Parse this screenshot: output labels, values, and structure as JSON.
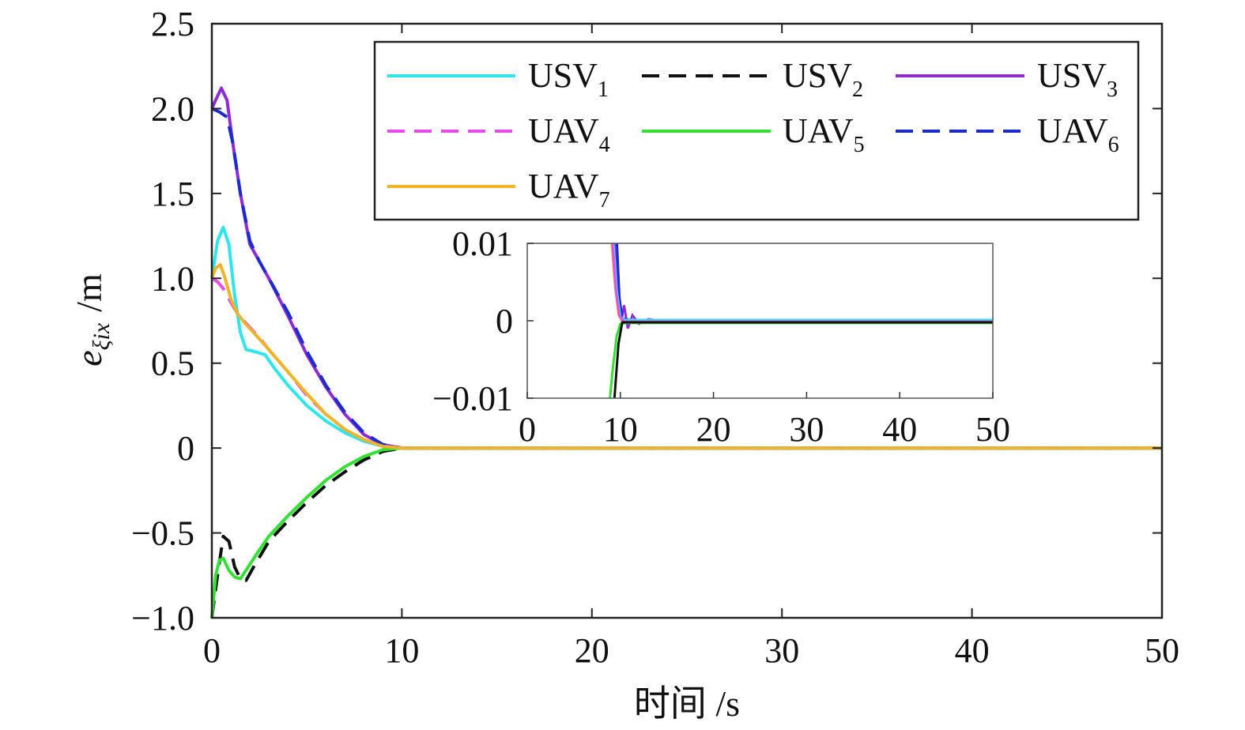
{
  "chart_data": [
    {
      "type": "line",
      "xlabel": "时间 /s",
      "ylabel": "e",
      "ylabel_sub": "ξix",
      "ylabel_unit": "/m",
      "xlim": [
        0,
        50
      ],
      "ylim": [
        -1.0,
        2.5
      ],
      "x_ticks": [
        "0",
        "10",
        "20",
        "30",
        "40",
        "50"
      ],
      "y_ticks": [
        "−1.0",
        "−0.5",
        "0",
        "0.5",
        "1.0",
        "1.5",
        "2.0",
        "2.5"
      ],
      "grid": false,
      "legend_placement": "top-right",
      "series": [
        {
          "name": "USV",
          "sub": "1",
          "color": "#2ee6ee",
          "dash": "solid",
          "x": [
            0,
            0.3,
            0.6,
            0.9,
            1.2,
            1.5,
            1.8,
            2.2,
            2.8,
            3.3,
            4,
            5,
            6,
            7,
            8,
            9,
            10,
            50
          ],
          "y": [
            1.0,
            1.22,
            1.3,
            1.2,
            0.9,
            0.68,
            0.58,
            0.57,
            0.55,
            0.47,
            0.37,
            0.25,
            0.16,
            0.09,
            0.04,
            0.01,
            0,
            0
          ]
        },
        {
          "name": "USV",
          "sub": "2",
          "color": "#111111",
          "dash": "dashed",
          "x": [
            0,
            0.3,
            0.6,
            0.9,
            1.2,
            1.5,
            1.8,
            2.2,
            3,
            4,
            5,
            6,
            7,
            8,
            9,
            10,
            50
          ],
          "y": [
            -1.0,
            -0.75,
            -0.52,
            -0.55,
            -0.7,
            -0.77,
            -0.78,
            -0.7,
            -0.55,
            -0.43,
            -0.32,
            -0.22,
            -0.14,
            -0.07,
            -0.02,
            0,
            0
          ]
        },
        {
          "name": "USV",
          "sub": "3",
          "color": "#8f2bd6",
          "dash": "solid",
          "x": [
            0,
            0.2,
            0.5,
            0.8,
            1.1,
            1.5,
            2,
            2.5,
            3,
            4,
            5,
            6,
            7,
            8,
            9,
            10,
            50
          ],
          "y": [
            2.0,
            2.05,
            2.12,
            2.05,
            1.8,
            1.5,
            1.2,
            1.1,
            1.0,
            0.78,
            0.55,
            0.36,
            0.2,
            0.08,
            0.02,
            0,
            0
          ]
        },
        {
          "name": "UAV",
          "sub": "4",
          "color": "#e64ce6",
          "dash": "dashed",
          "x": [
            0,
            0.3,
            0.6,
            0.9,
            1.2,
            1.6,
            2,
            2.5,
            3,
            4,
            5,
            6,
            7,
            8,
            9,
            10,
            50
          ],
          "y": [
            1.0,
            0.98,
            0.94,
            0.88,
            0.82,
            0.76,
            0.71,
            0.65,
            0.58,
            0.45,
            0.31,
            0.2,
            0.11,
            0.05,
            0.01,
            0,
            0
          ]
        },
        {
          "name": "UAV",
          "sub": "5",
          "color": "#35e035",
          "dash": "solid",
          "x": [
            0,
            0.2,
            0.4,
            0.6,
            0.9,
            1.2,
            1.5,
            1.8,
            2.5,
            3,
            4,
            5,
            6,
            7,
            8,
            9,
            10,
            50
          ],
          "y": [
            -1.0,
            -0.75,
            -0.66,
            -0.65,
            -0.72,
            -0.76,
            -0.77,
            -0.72,
            -0.6,
            -0.52,
            -0.4,
            -0.29,
            -0.19,
            -0.11,
            -0.05,
            -0.01,
            0,
            0
          ]
        },
        {
          "name": "UAV",
          "sub": "6",
          "color": "#1c2bd0",
          "dash": "dashed",
          "x": [
            0,
            0.4,
            0.8,
            1.1,
            1.5,
            2,
            2.5,
            3,
            4,
            5,
            6,
            7,
            8,
            9,
            10,
            50
          ],
          "y": [
            2.0,
            1.98,
            1.95,
            1.8,
            1.5,
            1.22,
            1.1,
            1.0,
            0.8,
            0.57,
            0.37,
            0.21,
            0.09,
            0.02,
            0,
            0
          ]
        },
        {
          "name": "UAV",
          "sub": "7",
          "color": "#f0b429",
          "dash": "solid",
          "x": [
            0,
            0.2,
            0.45,
            0.7,
            1.0,
            1.3,
            1.7,
            2.2,
            3,
            4,
            5,
            6,
            7,
            8,
            9,
            10,
            50
          ],
          "y": [
            1.0,
            1.06,
            1.08,
            1.0,
            0.88,
            0.8,
            0.74,
            0.68,
            0.58,
            0.45,
            0.32,
            0.2,
            0.11,
            0.05,
            0.01,
            0,
            0
          ]
        }
      ]
    },
    {
      "type": "line",
      "role": "inset",
      "xlim": [
        0,
        50
      ],
      "ylim": [
        -0.01,
        0.01
      ],
      "x_ticks": [
        "0",
        "10",
        "20",
        "30",
        "40",
        "50"
      ],
      "y_ticks": [
        "−0.01",
        "0",
        "0.01"
      ],
      "series": [
        {
          "ref": "USV3",
          "color": "#8f2bd6",
          "x": [
            9.4,
            9.8,
            10.1,
            10.4,
            10.8,
            11.3,
            12,
            13,
            15,
            50
          ],
          "y": [
            0.011,
            0.004,
            0.0,
            0.002,
            -0.001,
            0.0007,
            -0.0004,
            0.0002,
            -0.0001,
            -0.0001
          ]
        },
        {
          "ref": "UAV6",
          "color": "#1c2bd0",
          "x": [
            9.6,
            9.9,
            10.2,
            11,
            50
          ],
          "y": [
            0.011,
            0.003,
            0.0003,
            0.0001,
            0.0001
          ]
        },
        {
          "ref": "USV1",
          "color": "#2ee6ee",
          "x": [
            9.2,
            9.6,
            10.0,
            10.5,
            50
          ],
          "y": [
            0.011,
            0.004,
            0.0005,
            0.0001,
            0.0001
          ]
        },
        {
          "ref": "UAV7",
          "color": "#f0b429",
          "x": [
            9.0,
            9.4,
            9.8,
            10.3,
            50
          ],
          "y": [
            0.011,
            0.005,
            0.0008,
            -0.0002,
            -0.0002
          ]
        },
        {
          "ref": "UAV4",
          "color": "#e64ce6",
          "x": [
            9.1,
            9.5,
            9.9,
            10.4,
            50
          ],
          "y": [
            0.011,
            0.004,
            0.0006,
            -0.0001,
            -0.0001
          ]
        },
        {
          "ref": "UAV5",
          "color": "#35e035",
          "x": [
            8.8,
            9.2,
            9.6,
            10.0,
            10.6,
            50
          ],
          "y": [
            -0.011,
            -0.006,
            -0.002,
            -0.0004,
            -0.0003,
            -0.0003
          ]
        },
        {
          "ref": "USV2",
          "color": "#111111",
          "x": [
            9.3,
            9.8,
            10.2,
            50
          ],
          "y": [
            -0.011,
            -0.003,
            -0.0002,
            -0.0002
          ]
        }
      ]
    }
  ]
}
